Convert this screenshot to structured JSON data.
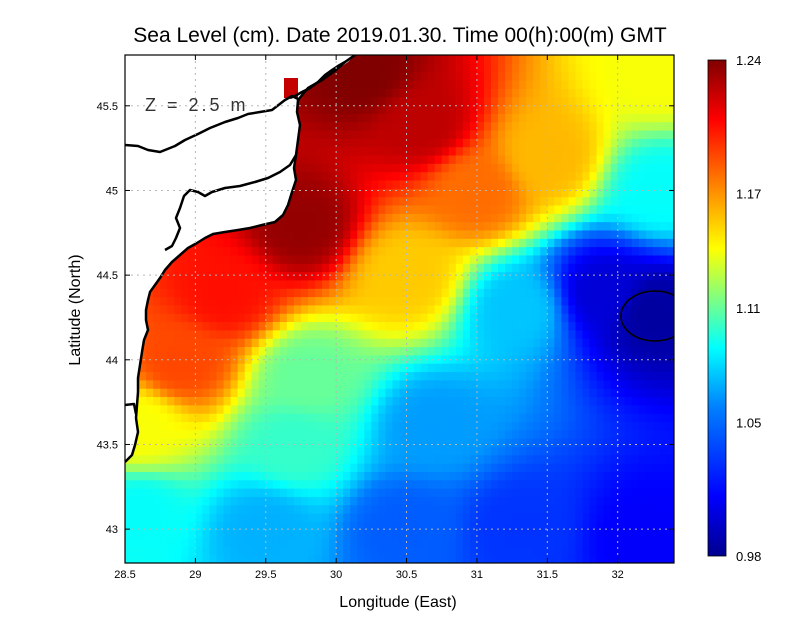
{
  "chart_data": {
    "type": "heatmap",
    "title": "Sea Level (cm). Date 2019.01.30. Time 00(h):00(m) GMT",
    "xlabel": "Longitude (East)",
    "ylabel": "Latitude (North)",
    "annotation": "Z = 2.5 m",
    "xlim": [
      28.5,
      32.4
    ],
    "ylim": [
      42.8,
      45.8
    ],
    "x_ticks": [
      28.5,
      29,
      29.5,
      30,
      30.5,
      31,
      31.5,
      32
    ],
    "x_tick_labels": [
      "28.5",
      "29",
      "29.5",
      "30",
      "30.5",
      "31",
      "31.5",
      "32"
    ],
    "y_ticks": [
      43,
      43.5,
      44,
      44.5,
      45,
      45.5
    ],
    "y_tick_labels": [
      "43",
      "43.5",
      "44",
      "44.5",
      "45",
      "45.5"
    ],
    "grid": true,
    "colorbar": {
      "min": 0.98,
      "max": 1.24,
      "ticks": [
        1.24,
        1.17,
        1.11,
        1.05,
        0.98
      ],
      "tick_labels": [
        "1.24",
        "1.17",
        "1.11",
        "1.05",
        "0.98"
      ],
      "colormap": [
        "#00008f",
        "#0000ff",
        "#0080ff",
        "#00ffff",
        "#80ff80",
        "#ffff00",
        "#ff8000",
        "#ff0000",
        "#800000"
      ]
    },
    "field_description": "Estimated sea level field: highest (~1.22-1.24) along the coast near 29.5-30.5E, 44.8-45.8N; decreasing toward south-east; minimum (~0.98-1.00) near 32.2E, 44.3N.",
    "field_control_points": [
      {
        "lon": 29.75,
        "lat": 44.8,
        "value": 1.235
      },
      {
        "lon": 30.2,
        "lat": 45.7,
        "value": 1.24
      },
      {
        "lon": 30.6,
        "lat": 45.4,
        "value": 1.225
      },
      {
        "lon": 29.2,
        "lat": 44.4,
        "value": 1.205
      },
      {
        "lon": 28.9,
        "lat": 44.0,
        "value": 1.19
      },
      {
        "lon": 32.25,
        "lat": 44.28,
        "value": 0.985
      },
      {
        "lon": 31.9,
        "lat": 44.4,
        "value": 1.0
      },
      {
        "lon": 32.2,
        "lat": 42.95,
        "value": 1.01
      },
      {
        "lon": 31.3,
        "lat": 43.0,
        "value": 1.03
      },
      {
        "lon": 30.5,
        "lat": 43.0,
        "value": 1.045
      },
      {
        "lon": 29.5,
        "lat": 43.0,
        "value": 1.07
      },
      {
        "lon": 28.6,
        "lat": 43.1,
        "value": 1.09
      },
      {
        "lon": 30.7,
        "lat": 43.6,
        "value": 1.065
      },
      {
        "lon": 29.8,
        "lat": 43.9,
        "value": 1.11
      },
      {
        "lon": 31.3,
        "lat": 44.3,
        "value": 1.075
      },
      {
        "lon": 32.3,
        "lat": 45.0,
        "value": 1.09
      },
      {
        "lon": 31.5,
        "lat": 45.2,
        "value": 1.16
      },
      {
        "lon": 32.3,
        "lat": 45.7,
        "value": 1.14
      },
      {
        "lon": 31.0,
        "lat": 45.0,
        "value": 1.18
      },
      {
        "lon": 30.5,
        "lat": 44.5,
        "value": 1.155
      },
      {
        "lon": 29.7,
        "lat": 43.5,
        "value": 1.1
      },
      {
        "lon": 28.6,
        "lat": 43.6,
        "value": 1.14
      }
    ],
    "land_value_note": "White areas are land (Bulgarian/Romanian coast); black lines are coastlines and the 0.98 contour."
  }
}
